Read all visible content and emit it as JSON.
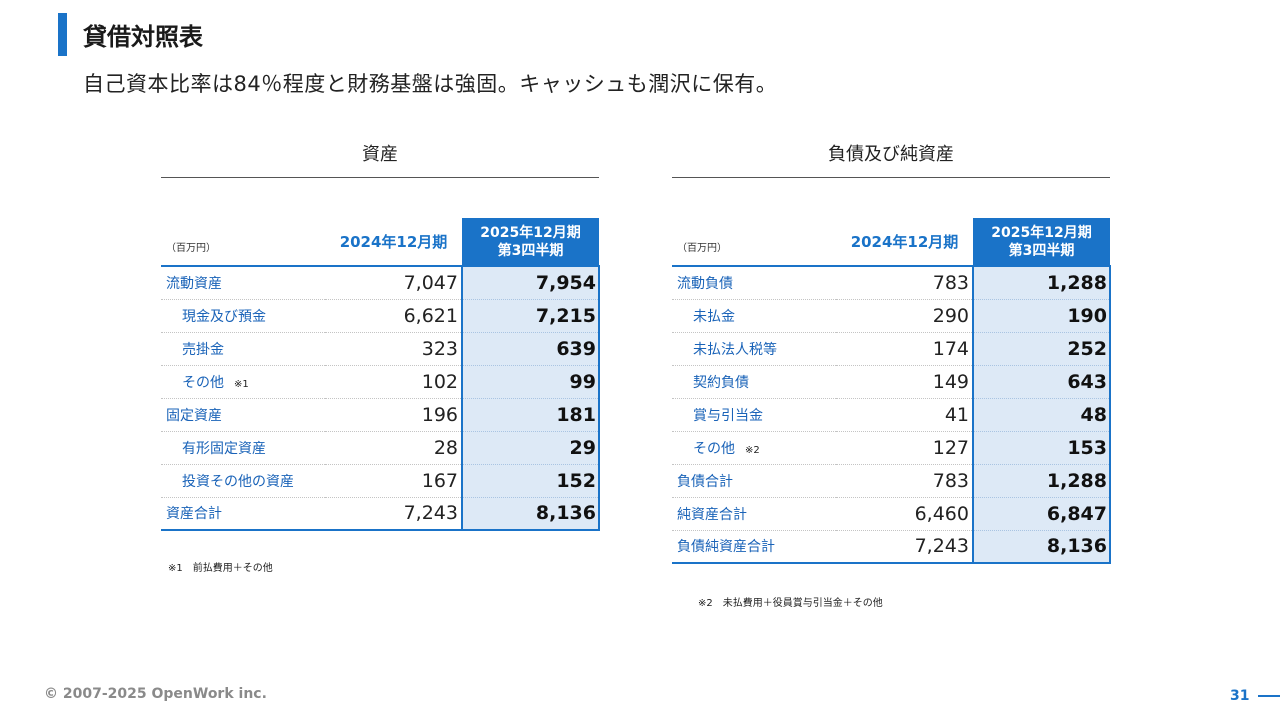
{
  "title": "貸借対照表",
  "subtitle": "自己資本比率は84％程度と財務基盤は強固。キャッシュも潤沢に保有。",
  "assets": {
    "heading": "資産",
    "unit": "（百万円）",
    "col_2024": "2024年12月期",
    "col_2025_line1": "2025年12月期",
    "col_2025_line2": "第3四半期",
    "rows": [
      {
        "label": "流動資産",
        "v2024": "7,047",
        "v2025": "7,954"
      },
      {
        "label": "現金及び預金",
        "v2024": "6,621",
        "v2025": "7,215"
      },
      {
        "label": "売掛金",
        "v2024": "323",
        "v2025": "639"
      },
      {
        "label": "その他",
        "note": "※1",
        "v2024": "102",
        "v2025": "99"
      },
      {
        "label": "固定資産",
        "v2024": "196",
        "v2025": "181"
      },
      {
        "label": "有形固定資産",
        "v2024": "28",
        "v2025": "29"
      },
      {
        "label": "投資その他の資産",
        "v2024": "167",
        "v2025": "152"
      },
      {
        "label": "資産合計",
        "v2024": "7,243",
        "v2025": "8,136"
      }
    ],
    "footnote": "※1　前払費用＋その他"
  },
  "liabilities": {
    "heading": "負債及び純資産",
    "unit": "（百万円）",
    "col_2024": "2024年12月期",
    "col_2025_line1": "2025年12月期",
    "col_2025_line2": "第3四半期",
    "rows": [
      {
        "label": "流動負債",
        "v2024": "783",
        "v2025": "1,288"
      },
      {
        "label": "未払金",
        "v2024": "290",
        "v2025": "190"
      },
      {
        "label": "未払法人税等",
        "v2024": "174",
        "v2025": "252"
      },
      {
        "label": "契約負債",
        "v2024": "149",
        "v2025": "643"
      },
      {
        "label": "賞与引当金",
        "v2024": "41",
        "v2025": "48"
      },
      {
        "label": "その他",
        "note": "※2",
        "v2024": "127",
        "v2025": "153"
      },
      {
        "label": "負債合計",
        "v2024": "783",
        "v2025": "1,288"
      },
      {
        "label": "純資産合計",
        "v2024": "6,460",
        "v2025": "6,847"
      },
      {
        "label": "負債純資産合計",
        "v2024": "7,243",
        "v2025": "8,136"
      }
    ],
    "footnote": "※2　未払費用＋役員賞与引当金＋その他"
  },
  "copyright": "© 2007-2025 OpenWork inc.",
  "page_number": "31"
}
